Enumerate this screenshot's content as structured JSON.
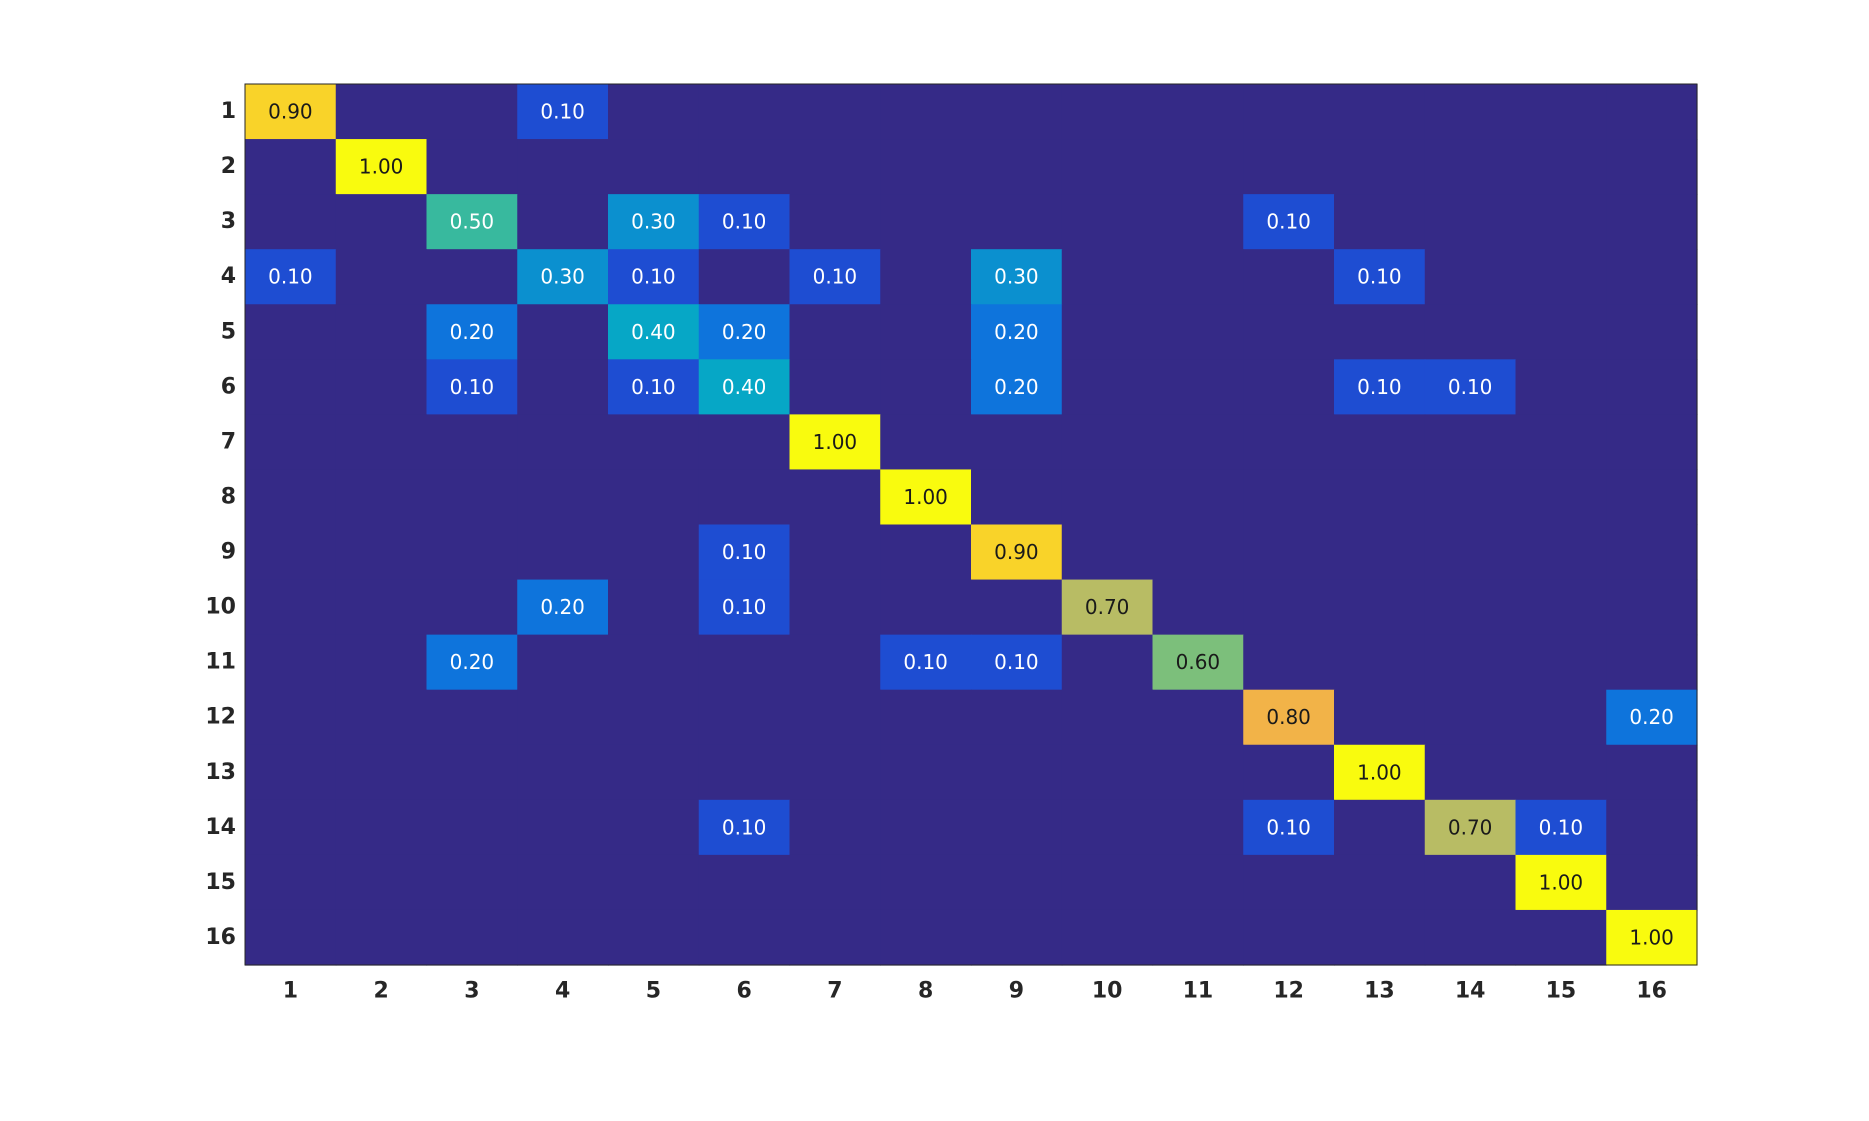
{
  "chart_data": {
    "type": "heatmap",
    "title": "",
    "xlabel": "",
    "ylabel": "",
    "x_categories": [
      "1",
      "2",
      "3",
      "4",
      "5",
      "6",
      "7",
      "8",
      "9",
      "10",
      "11",
      "12",
      "13",
      "14",
      "15",
      "16"
    ],
    "y_categories": [
      "1",
      "2",
      "3",
      "4",
      "5",
      "6",
      "7",
      "8",
      "9",
      "10",
      "11",
      "12",
      "13",
      "14",
      "15",
      "16"
    ],
    "color_range": [
      0,
      1
    ],
    "colormap": "parula",
    "colorbar": false,
    "background_color": "#352a87",
    "values": [
      [
        0.9,
        0,
        0,
        0.1,
        0,
        0,
        0,
        0,
        0,
        0,
        0,
        0,
        0,
        0,
        0,
        0
      ],
      [
        0,
        1.0,
        0,
        0,
        0,
        0,
        0,
        0,
        0,
        0,
        0,
        0,
        0,
        0,
        0,
        0
      ],
      [
        0,
        0,
        0.5,
        0,
        0.3,
        0.1,
        0,
        0,
        0,
        0,
        0,
        0.1,
        0,
        0,
        0,
        0
      ],
      [
        0.1,
        0,
        0,
        0.3,
        0.1,
        0,
        0.1,
        0,
        0.3,
        0,
        0,
        0,
        0.1,
        0,
        0,
        0
      ],
      [
        0,
        0,
        0.2,
        0,
        0.4,
        0.2,
        0,
        0,
        0.2,
        0,
        0,
        0,
        0,
        0,
        0,
        0
      ],
      [
        0,
        0,
        0.1,
        0,
        0.1,
        0.4,
        0,
        0,
        0.2,
        0,
        0,
        0,
        0.1,
        0.1,
        0,
        0
      ],
      [
        0,
        0,
        0,
        0,
        0,
        0,
        1.0,
        0,
        0,
        0,
        0,
        0,
        0,
        0,
        0,
        0
      ],
      [
        0,
        0,
        0,
        0,
        0,
        0,
        0,
        1.0,
        0,
        0,
        0,
        0,
        0,
        0,
        0,
        0
      ],
      [
        0,
        0,
        0,
        0,
        0,
        0.1,
        0,
        0,
        0.9,
        0,
        0,
        0,
        0,
        0,
        0,
        0
      ],
      [
        0,
        0,
        0,
        0.2,
        0,
        0.1,
        0,
        0,
        0,
        0.7,
        0,
        0,
        0,
        0,
        0,
        0
      ],
      [
        0,
        0,
        0.2,
        0,
        0,
        0,
        0,
        0.1,
        0.1,
        0,
        0.6,
        0,
        0,
        0,
        0,
        0
      ],
      [
        0,
        0,
        0,
        0,
        0,
        0,
        0,
        0,
        0,
        0,
        0,
        0.8,
        0,
        0,
        0,
        0.2
      ],
      [
        0,
        0,
        0,
        0,
        0,
        0,
        0,
        0,
        0,
        0,
        0,
        0,
        1.0,
        0,
        0,
        0
      ],
      [
        0,
        0,
        0,
        0,
        0,
        0.1,
        0,
        0,
        0,
        0,
        0,
        0.1,
        0,
        0.7,
        0.1,
        0
      ],
      [
        0,
        0,
        0,
        0,
        0,
        0,
        0,
        0,
        0,
        0,
        0,
        0,
        0,
        0,
        1.0,
        0
      ],
      [
        0,
        0,
        0,
        0,
        0,
        0,
        0,
        0,
        0,
        0,
        0,
        0,
        0,
        0,
        0,
        1.0
      ]
    ],
    "cell_labels": [
      [
        "0.90",
        "",
        "",
        "0.10",
        "",
        "",
        "",
        "",
        "",
        "",
        "",
        "",
        "",
        "",
        "",
        ""
      ],
      [
        "",
        "1.00",
        "",
        "",
        "",
        "",
        "",
        "",
        "",
        "",
        "",
        "",
        "",
        "",
        "",
        ""
      ],
      [
        "",
        "",
        "0.50",
        "",
        "0.30",
        "0.10",
        "",
        "",
        "",
        "",
        "",
        "0.10",
        "",
        "",
        "",
        ""
      ],
      [
        "0.10",
        "",
        "",
        "0.30",
        "0.10",
        "",
        "0.10",
        "",
        "0.30",
        "",
        "",
        "",
        "0.10",
        "",
        "",
        ""
      ],
      [
        "",
        "",
        "0.20",
        "",
        "0.40",
        "0.20",
        "",
        "",
        "0.20",
        "",
        "",
        "",
        "",
        "",
        "",
        ""
      ],
      [
        "",
        "",
        "0.10",
        "",
        "0.10",
        "0.40",
        "",
        "",
        "0.20",
        "",
        "",
        "",
        "0.10",
        "0.10",
        "",
        ""
      ],
      [
        "",
        "",
        "",
        "",
        "",
        "",
        "1.00",
        "",
        "",
        "",
        "",
        "",
        "",
        "",
        "",
        ""
      ],
      [
        "",
        "",
        "",
        "",
        "",
        "",
        "",
        "1.00",
        "",
        "",
        "",
        "",
        "",
        "",
        "",
        ""
      ],
      [
        "",
        "",
        "",
        "",
        "",
        "0.10",
        "",
        "",
        "0.90",
        "",
        "",
        "",
        "",
        "",
        "",
        ""
      ],
      [
        "",
        "",
        "",
        "0.20",
        "",
        "0.10",
        "",
        "",
        "",
        "0.70",
        "",
        "",
        "",
        "",
        "",
        ""
      ],
      [
        "",
        "",
        "0.20",
        "",
        "",
        "",
        "",
        "0.10",
        "0.10",
        "",
        "0.60",
        "",
        "",
        "",
        "",
        ""
      ],
      [
        "",
        "",
        "",
        "",
        "",
        "",
        "",
        "",
        "",
        "",
        "",
        "0.80",
        "",
        "",
        "",
        "0.20"
      ],
      [
        "",
        "",
        "",
        "",
        "",
        "",
        "",
        "",
        "",
        "",
        "",
        "",
        "1.00",
        "",
        "",
        ""
      ],
      [
        "",
        "",
        "",
        "",
        "",
        "0.10",
        "",
        "",
        "",
        "",
        "",
        "0.10",
        "",
        "0.70",
        "0.10",
        ""
      ],
      [
        "",
        "",
        "",
        "",
        "",
        "",
        "",
        "",
        "",
        "",
        "",
        "",
        "",
        "",
        "1.00",
        ""
      ],
      [
        "",
        "",
        "",
        "",
        "",
        "",
        "",
        "",
        "",
        "",
        "",
        "",
        "",
        "",
        "",
        "1.00"
      ]
    ]
  }
}
